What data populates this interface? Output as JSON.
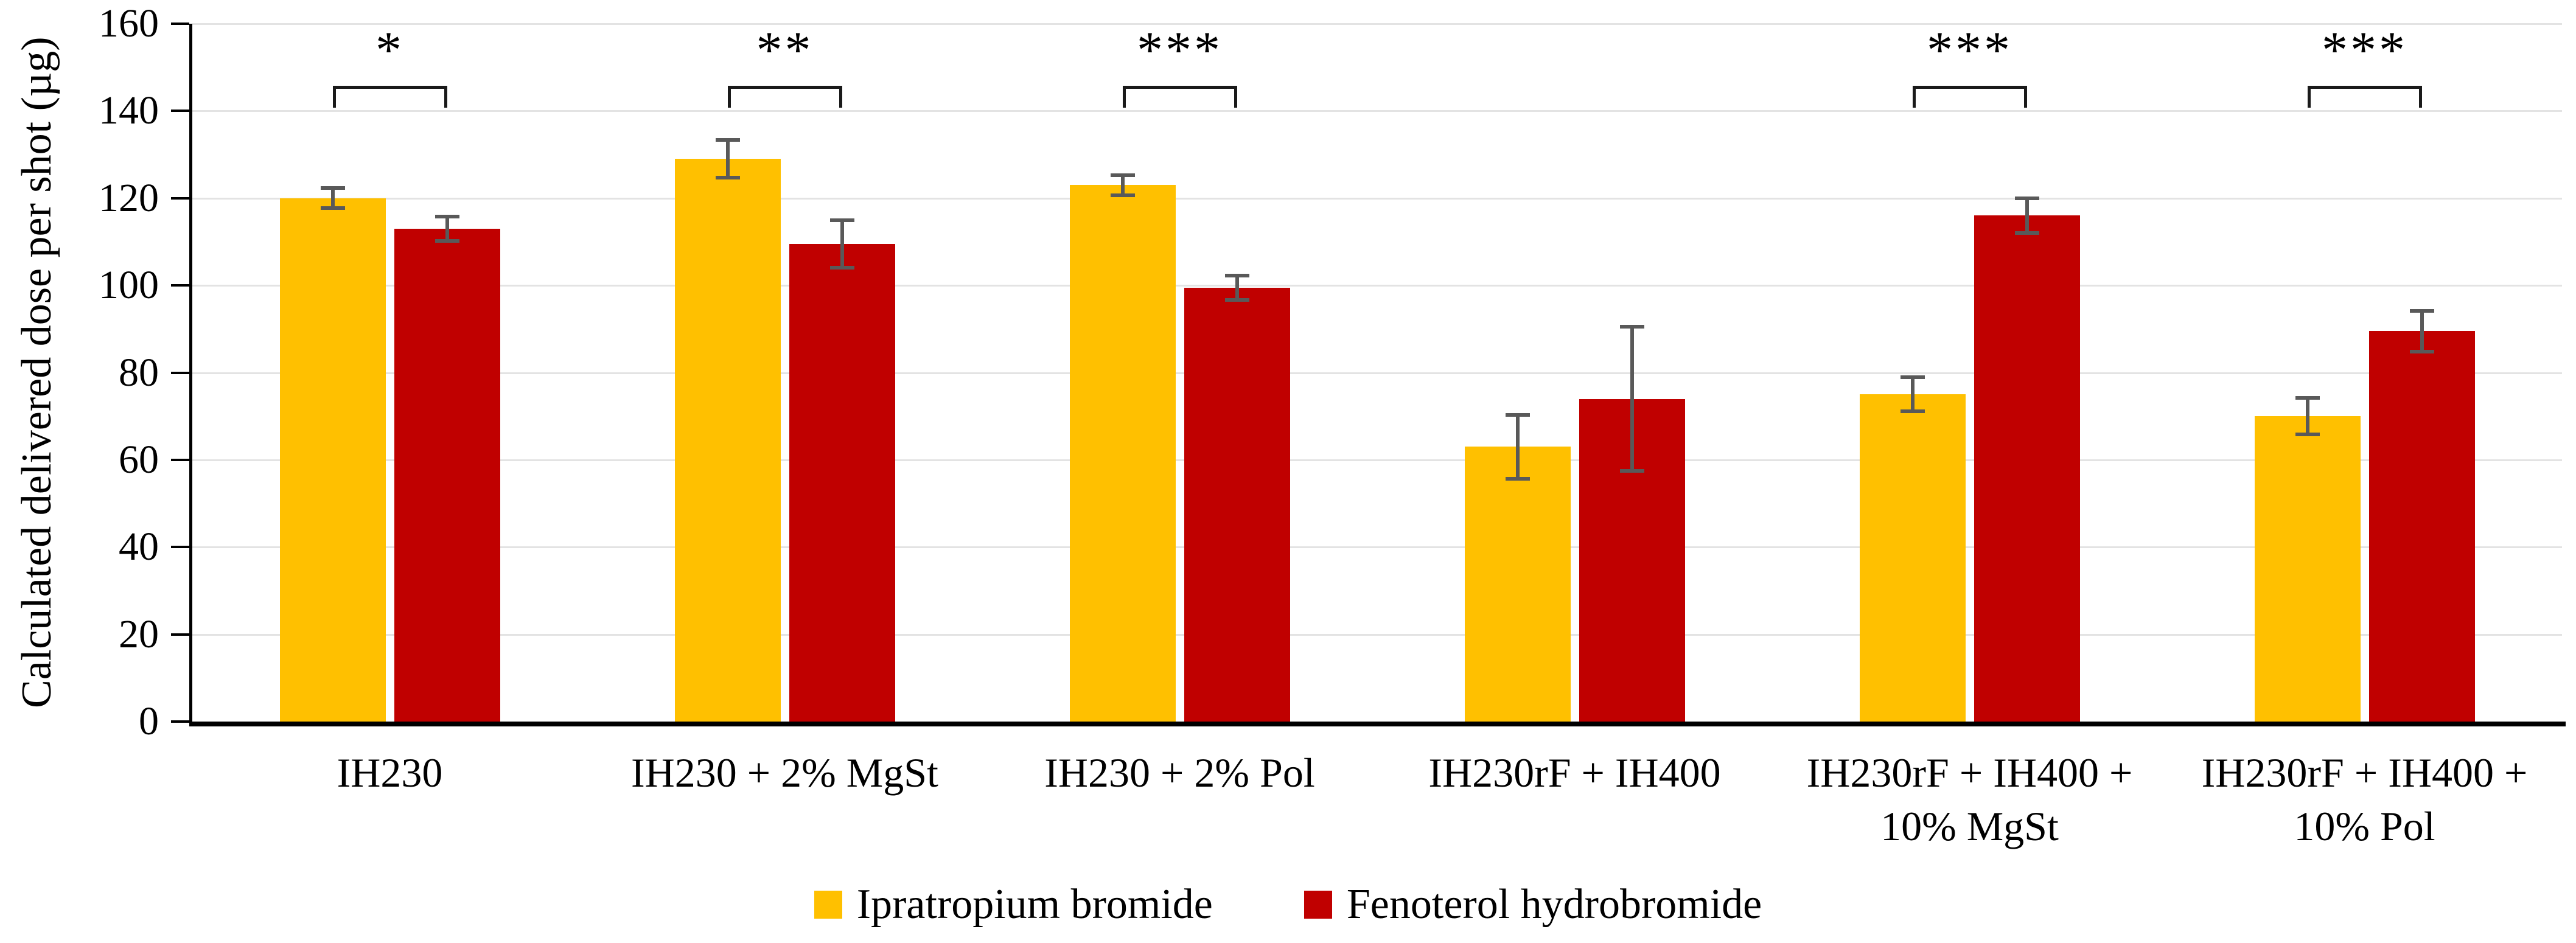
{
  "chart_data": {
    "type": "bar",
    "title": "",
    "xlabel": "",
    "ylabel": "Calculated delivered dose per shot (µg)",
    "ylim": [
      0,
      160
    ],
    "ytick_step": 20,
    "grid": "horizontal",
    "legend_position": "bottom",
    "categories": [
      "IH230",
      "IH230 + 2% MgSt",
      "IH230 + 2% Pol",
      "IH230rF + IH400",
      "IH230rF + IH400 +\n10% MgSt",
      "IH230rF + IH400 +\n10% Pol"
    ],
    "series": [
      {
        "name": "Ipratropium bromide",
        "color": "#FFC000",
        "values": [
          120,
          129,
          123,
          63,
          75,
          70
        ],
        "errors": [
          2.3,
          4.3,
          2.3,
          7.3,
          3.9,
          4.2
        ]
      },
      {
        "name": "Fenoterol hydrobromide",
        "color": "#C00000",
        "values": [
          113,
          109.5,
          99.5,
          74,
          116,
          89.5
        ],
        "errors": [
          2.8,
          5.5,
          2.8,
          16.5,
          4.0,
          4.7
        ]
      }
    ],
    "significance": [
      {
        "group": 0,
        "label": "*"
      },
      {
        "group": 1,
        "label": "**"
      },
      {
        "group": 2,
        "label": "***"
      },
      {
        "group": 4,
        "label": "***"
      },
      {
        "group": 5,
        "label": "***"
      }
    ],
    "colors": {
      "error_bar": "#595959",
      "gridline": "#E3E3E3",
      "axis": "#000000",
      "bracket": "#1a1a1a"
    },
    "y_tick_labels": [
      "0",
      "20",
      "40",
      "60",
      "80",
      "100",
      "120",
      "140",
      "160"
    ]
  }
}
